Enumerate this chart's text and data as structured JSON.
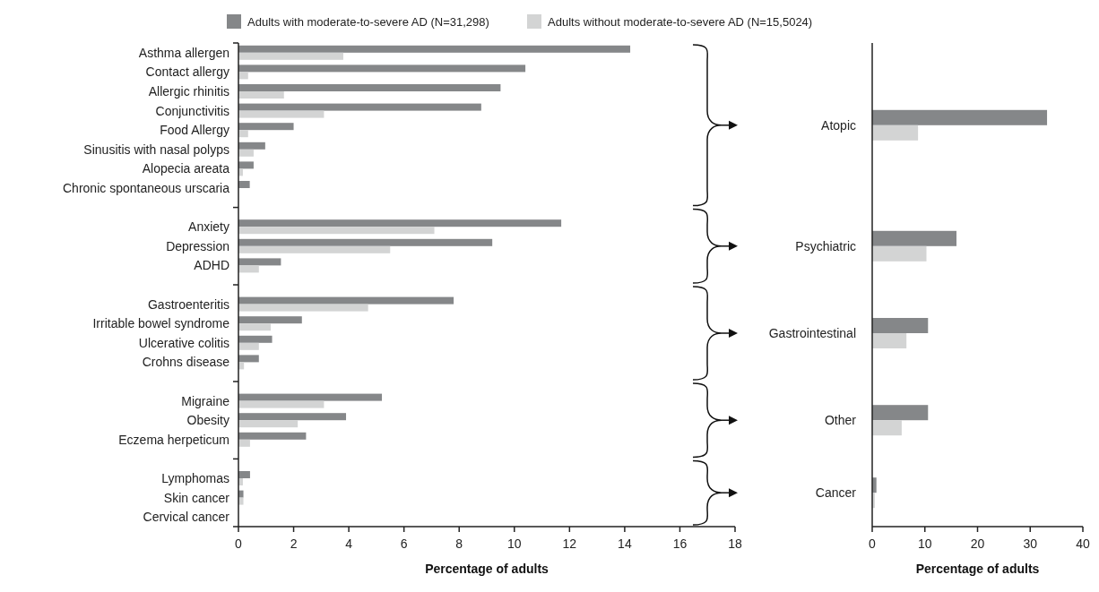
{
  "chart_data": [
    {
      "type": "bar",
      "orientation": "horizontal",
      "legend": "top",
      "xlabel": "Percentage of adults",
      "xlim": [
        0,
        18
      ],
      "xticks": [
        0,
        2,
        4,
        6,
        8,
        10,
        12,
        14,
        16,
        18
      ],
      "categories": [
        "Asthma allergen",
        "Contact allergy",
        "Allergic rhinitis",
        "Conjunctivitis",
        "Food Allergy",
        "Sinusitis with nasal polyps",
        "Alopecia areata",
        "Chronic spontaneous urscaria",
        null,
        "Anxiety",
        "Depression",
        "ADHD",
        null,
        "Gastroenteritis",
        "Irritable bowel syndrome",
        "Ulcerative colitis",
        "Crohns disease",
        null,
        "Migraine",
        "Obesity",
        "Eczema herpeticum ",
        null,
        "Lymphomas",
        "Skin cancer",
        "Cervical cancer"
      ],
      "series": [
        {
          "name": "Adults with moderate-to-severe AD (N=31,298)",
          "color": "#858789",
          "values": [
            14.2,
            10.4,
            9.5,
            8.8,
            2.0,
            0.97,
            0.55,
            0.41,
            null,
            11.7,
            9.2,
            1.54,
            null,
            7.8,
            2.3,
            1.22,
            0.74,
            null,
            5.2,
            3.9,
            2.45,
            null,
            0.42,
            0.18,
            0
          ]
        },
        {
          "name": "Adults without moderate-to-severe AD (N=15,5024)",
          "color": "#d3d4d4",
          "values": [
            3.8,
            0.35,
            1.65,
            3.1,
            0.35,
            0.55,
            0.16,
            0,
            null,
            7.1,
            5.5,
            0.74,
            null,
            4.7,
            1.17,
            0.74,
            0.2,
            null,
            3.1,
            2.15,
            0.42,
            null,
            0.16,
            0.18,
            0
          ]
        }
      ]
    },
    {
      "type": "bar",
      "orientation": "horizontal",
      "xlabel": "Percentage of adults",
      "xlim": [
        0,
        40
      ],
      "xticks": [
        0,
        10,
        20,
        30,
        40
      ],
      "categories": [
        "Atopic",
        "Psychiatric",
        "Gastrointestinal",
        "Other",
        "Cancer"
      ],
      "series": [
        {
          "color": "#858789",
          "values": [
            33.2,
            16.0,
            10.6,
            10.6,
            0.8
          ]
        },
        {
          "color": "#d3d4d4",
          "values": [
            8.7,
            10.3,
            6.5,
            5.6,
            0.5
          ]
        }
      ]
    }
  ]
}
